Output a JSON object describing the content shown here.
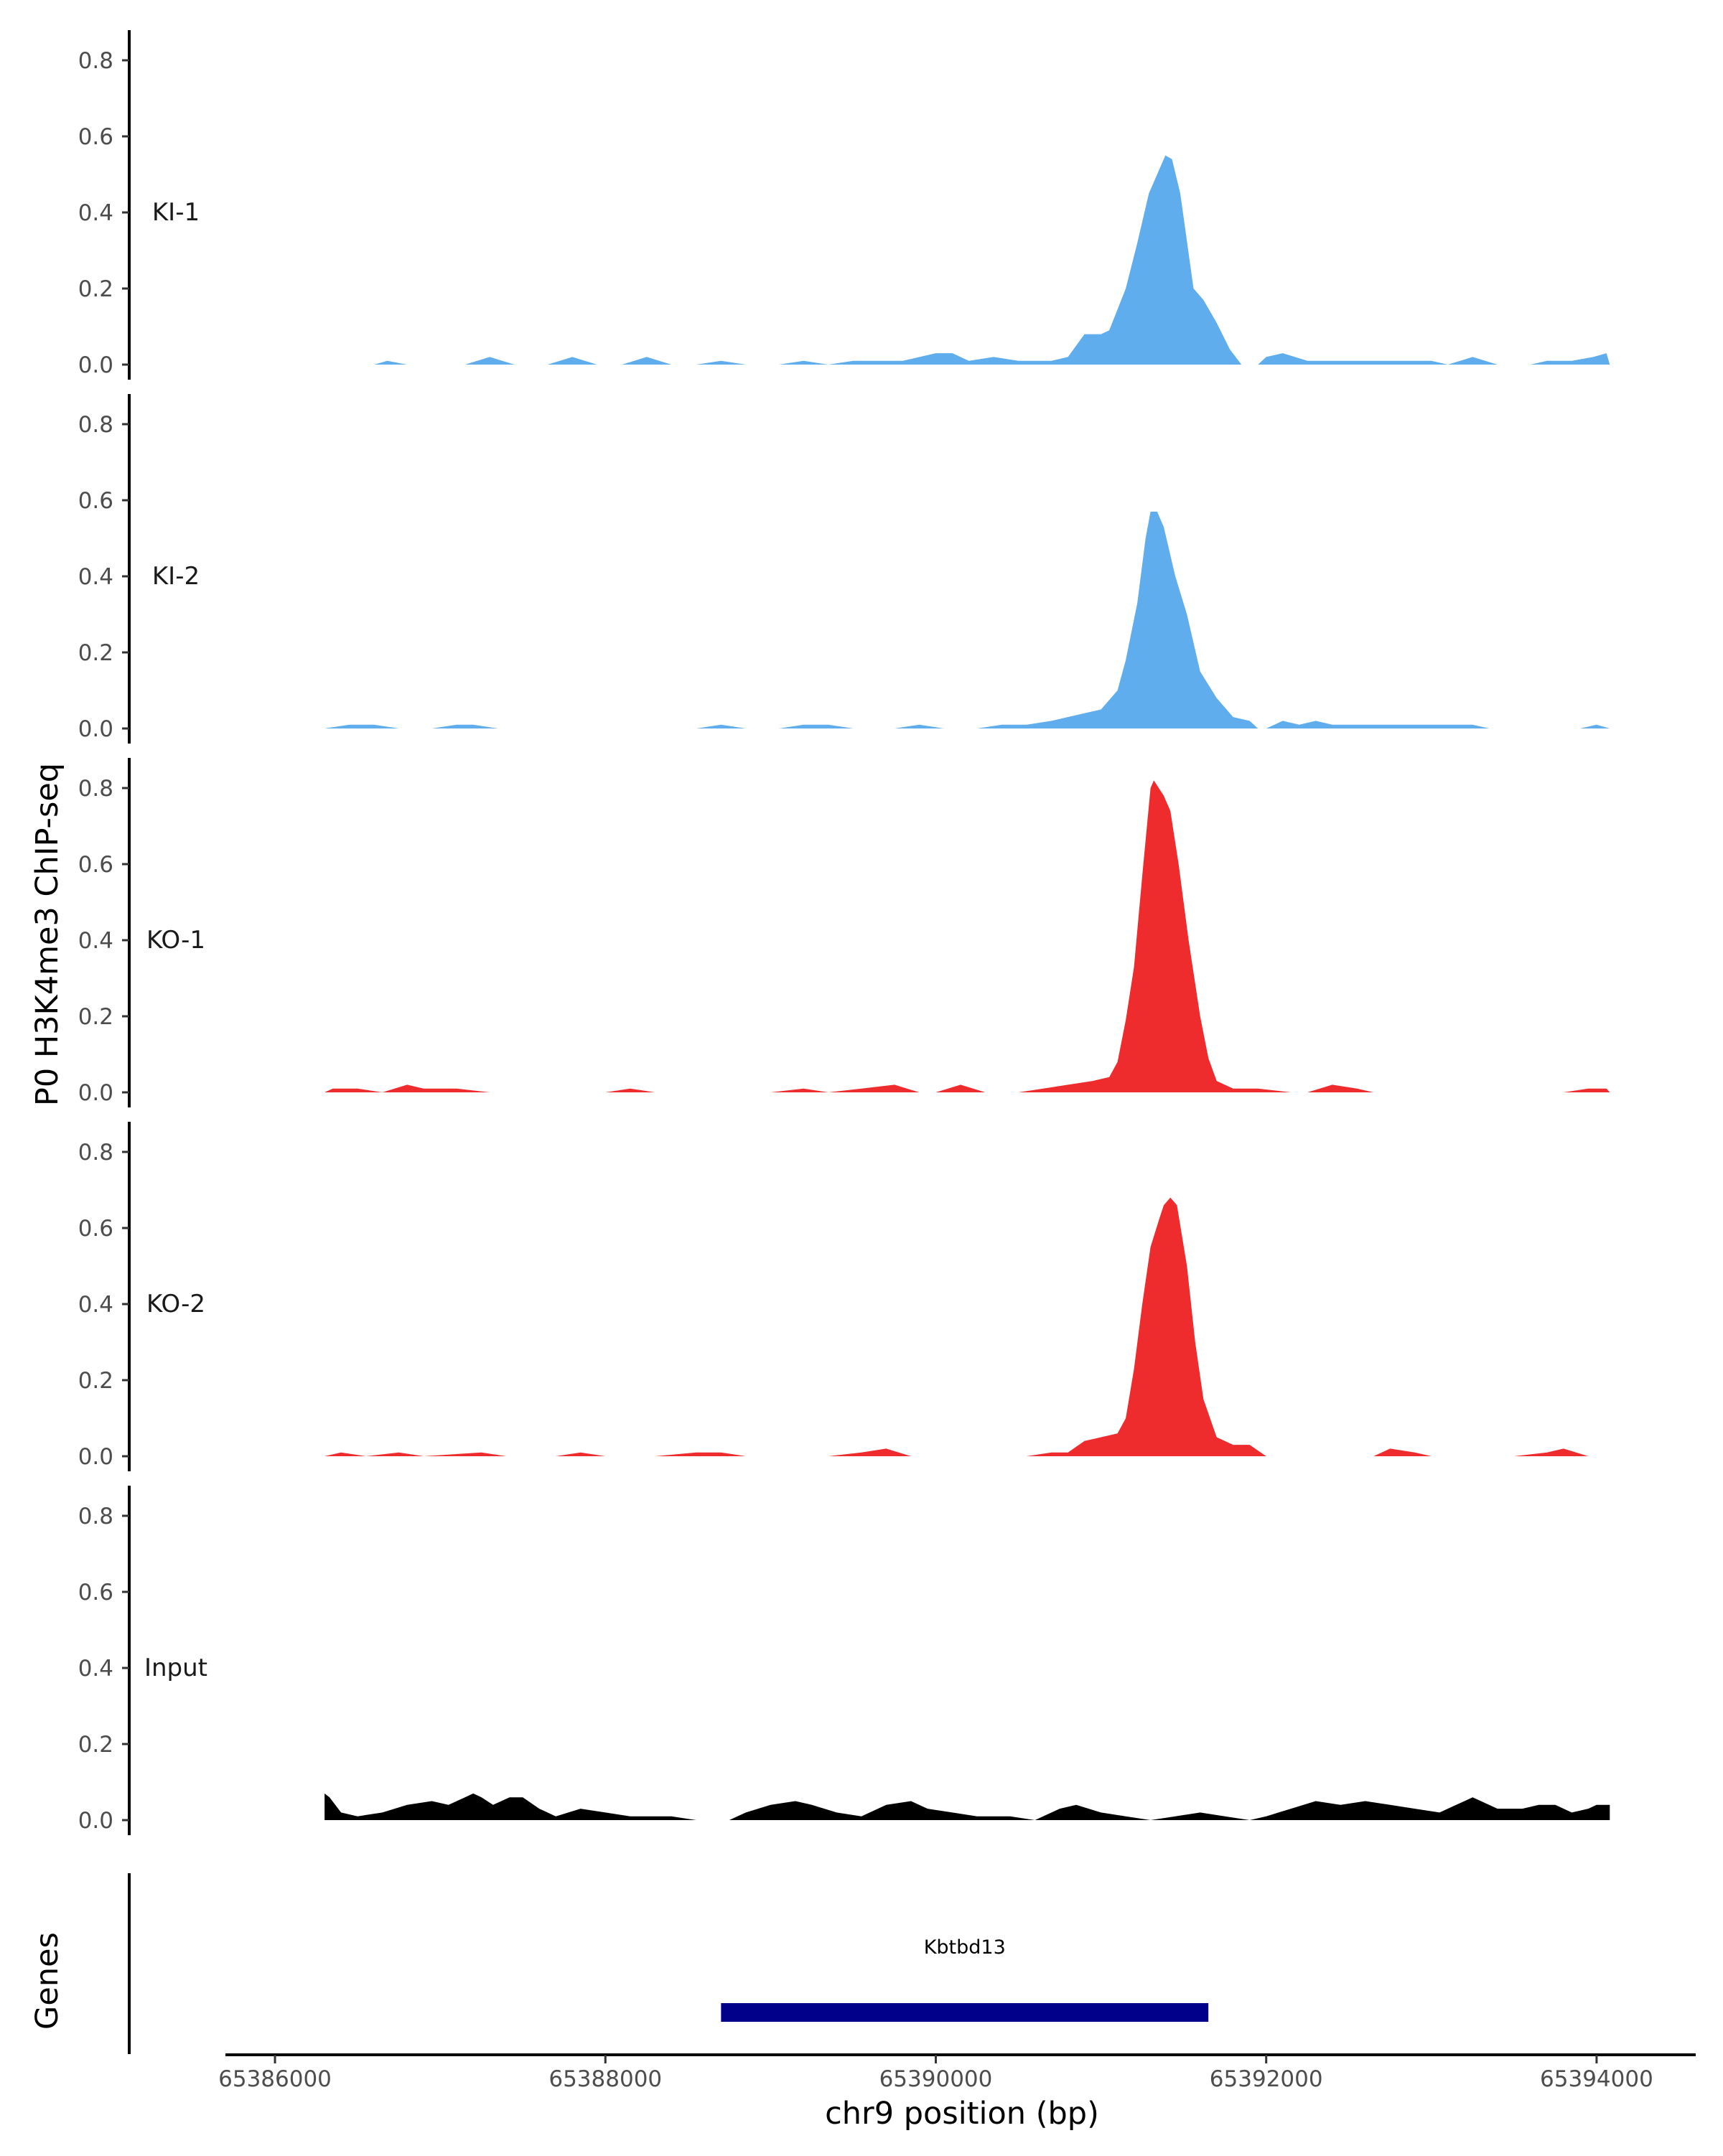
{
  "chart_data": {
    "type": "area",
    "ylabel": "P0 H3K4me3 ChIP-seq",
    "xlabel": "chr9 position (bp)",
    "ylim": [
      0,
      0.85
    ],
    "yticks": [
      0.0,
      0.2,
      0.4,
      0.6,
      0.8
    ],
    "ytick_labels": [
      "0.0",
      "0.2",
      "0.4",
      "0.6",
      "0.8"
    ],
    "xlim": [
      65385700,
      65394600
    ],
    "xticks": [
      65386000,
      65388000,
      65390000,
      65392000,
      65394000
    ],
    "xtick_labels": [
      "65386000",
      "65388000",
      "65390000",
      "65392000",
      "65394000"
    ],
    "grid": false,
    "tracks": [
      {
        "name": "KI-1",
        "color": "#5FADEC",
        "points": [
          [
            65386300,
            0
          ],
          [
            65386600,
            0
          ],
          [
            65386680,
            0.01
          ],
          [
            65386800,
            0
          ],
          [
            65387000,
            0
          ],
          [
            65387150,
            0
          ],
          [
            65387300,
            0.02
          ],
          [
            65387450,
            0
          ],
          [
            65387650,
            0
          ],
          [
            65387800,
            0.02
          ],
          [
            65387950,
            0
          ],
          [
            65388100,
            0
          ],
          [
            65388250,
            0.02
          ],
          [
            65388400,
            0
          ],
          [
            65388550,
            0
          ],
          [
            65388700,
            0.01
          ],
          [
            65388850,
            0
          ],
          [
            65389050,
            0
          ],
          [
            65389200,
            0.01
          ],
          [
            65389350,
            0
          ],
          [
            65389500,
            0.01
          ],
          [
            65389650,
            0.01
          ],
          [
            65389800,
            0.01
          ],
          [
            65390000,
            0.03
          ],
          [
            65390100,
            0.03
          ],
          [
            65390200,
            0.01
          ],
          [
            65390350,
            0.02
          ],
          [
            65390500,
            0.01
          ],
          [
            65390700,
            0.01
          ],
          [
            65390800,
            0.02
          ],
          [
            65390900,
            0.08
          ],
          [
            65391000,
            0.08
          ],
          [
            65391050,
            0.09
          ],
          [
            65391150,
            0.2
          ],
          [
            65391220,
            0.32
          ],
          [
            65391290,
            0.45
          ],
          [
            65391340,
            0.5
          ],
          [
            65391390,
            0.55
          ],
          [
            65391430,
            0.54
          ],
          [
            65391480,
            0.45
          ],
          [
            65391560,
            0.2
          ],
          [
            65391620,
            0.17
          ],
          [
            65391700,
            0.11
          ],
          [
            65391780,
            0.04
          ],
          [
            65391850,
            0
          ],
          [
            65391950,
            0
          ],
          [
            65392000,
            0.02
          ],
          [
            65392100,
            0.03
          ],
          [
            65392250,
            0.01
          ],
          [
            65392500,
            0.01
          ],
          [
            65392700,
            0.01
          ],
          [
            65392850,
            0.01
          ],
          [
            65393000,
            0.01
          ],
          [
            65393100,
            0
          ],
          [
            65393250,
            0.02
          ],
          [
            65393400,
            0
          ],
          [
            65393600,
            0
          ],
          [
            65393700,
            0.01
          ],
          [
            65393850,
            0.01
          ],
          [
            65393980,
            0.02
          ],
          [
            65394060,
            0.03
          ],
          [
            65394080,
            0
          ]
        ]
      },
      {
        "name": "KI-2",
        "color": "#5FADEC",
        "points": [
          [
            65386300,
            0
          ],
          [
            65386450,
            0.01
          ],
          [
            65386600,
            0.01
          ],
          [
            65386750,
            0
          ],
          [
            65386950,
            0
          ],
          [
            65387100,
            0.01
          ],
          [
            65387200,
            0.01
          ],
          [
            65387350,
            0
          ],
          [
            65387650,
            0
          ],
          [
            65388550,
            0
          ],
          [
            65388700,
            0.01
          ],
          [
            65388850,
            0
          ],
          [
            65389050,
            0
          ],
          [
            65389200,
            0.01
          ],
          [
            65389350,
            0.01
          ],
          [
            65389500,
            0
          ],
          [
            65389750,
            0
          ],
          [
            65389900,
            0.01
          ],
          [
            65390050,
            0
          ],
          [
            65390250,
            0
          ],
          [
            65390400,
            0.01
          ],
          [
            65390550,
            0.01
          ],
          [
            65390700,
            0.02
          ],
          [
            65390900,
            0.04
          ],
          [
            65391000,
            0.05
          ],
          [
            65391100,
            0.1
          ],
          [
            65391150,
            0.18
          ],
          [
            65391220,
            0.33
          ],
          [
            65391270,
            0.5
          ],
          [
            65391300,
            0.57
          ],
          [
            65391340,
            0.57
          ],
          [
            65391380,
            0.53
          ],
          [
            65391450,
            0.4
          ],
          [
            65391520,
            0.3
          ],
          [
            65391600,
            0.15
          ],
          [
            65391700,
            0.08
          ],
          [
            65391800,
            0.03
          ],
          [
            65391900,
            0.02
          ],
          [
            65391950,
            0
          ],
          [
            65392000,
            0
          ],
          [
            65392100,
            0.02
          ],
          [
            65392200,
            0.01
          ],
          [
            65392300,
            0.02
          ],
          [
            65392400,
            0.01
          ],
          [
            65392600,
            0.01
          ],
          [
            65392800,
            0.01
          ],
          [
            65393000,
            0.01
          ],
          [
            65393100,
            0.01
          ],
          [
            65393250,
            0.01
          ],
          [
            65393350,
            0
          ],
          [
            65393900,
            0
          ],
          [
            65394000,
            0.01
          ],
          [
            65394080,
            0
          ]
        ]
      },
      {
        "name": "KO-1",
        "color": "#EE2B2D",
        "points": [
          [
            65386300,
            0
          ],
          [
            65386350,
            0.01
          ],
          [
            65386500,
            0.01
          ],
          [
            65386650,
            0
          ],
          [
            65386800,
            0.02
          ],
          [
            65386900,
            0.01
          ],
          [
            65387000,
            0.01
          ],
          [
            65387100,
            0.01
          ],
          [
            65387300,
            0
          ],
          [
            65388000,
            0
          ],
          [
            65388150,
            0.01
          ],
          [
            65388300,
            0
          ],
          [
            65389000,
            0
          ],
          [
            65389200,
            0.01
          ],
          [
            65389350,
            0
          ],
          [
            65389550,
            0.01
          ],
          [
            65389750,
            0.02
          ],
          [
            65389900,
            0
          ],
          [
            65390000,
            0
          ],
          [
            65390150,
            0.02
          ],
          [
            65390300,
            0
          ],
          [
            65390500,
            0
          ],
          [
            65390650,
            0.01
          ],
          [
            65390800,
            0.02
          ],
          [
            65390950,
            0.03
          ],
          [
            65391050,
            0.04
          ],
          [
            65391100,
            0.08
          ],
          [
            65391150,
            0.19
          ],
          [
            65391200,
            0.33
          ],
          [
            65391250,
            0.57
          ],
          [
            65391300,
            0.8
          ],
          [
            65391320,
            0.82
          ],
          [
            65391380,
            0.78
          ],
          [
            65391420,
            0.74
          ],
          [
            65391470,
            0.6
          ],
          [
            65391530,
            0.4
          ],
          [
            65391600,
            0.2
          ],
          [
            65391650,
            0.09
          ],
          [
            65391700,
            0.03
          ],
          [
            65391800,
            0.01
          ],
          [
            65391950,
            0.01
          ],
          [
            65392150,
            0
          ],
          [
            65392250,
            0
          ],
          [
            65392400,
            0.02
          ],
          [
            65392550,
            0.01
          ],
          [
            65392650,
            0
          ],
          [
            65393800,
            0
          ],
          [
            65393950,
            0.01
          ],
          [
            65394060,
            0.01
          ],
          [
            65394080,
            0
          ]
        ]
      },
      {
        "name": "KO-2",
        "color": "#EE2B2D",
        "points": [
          [
            65386300,
            0
          ],
          [
            65386400,
            0.01
          ],
          [
            65386550,
            0
          ],
          [
            65386750,
            0.01
          ],
          [
            65386900,
            0
          ],
          [
            65387250,
            0.01
          ],
          [
            65387400,
            0
          ],
          [
            65387500,
            0
          ],
          [
            65387700,
            0
          ],
          [
            65387850,
            0.01
          ],
          [
            65388000,
            0
          ],
          [
            65388300,
            0
          ],
          [
            65388550,
            0.01
          ],
          [
            65388700,
            0.01
          ],
          [
            65388850,
            0
          ],
          [
            65389000,
            0
          ],
          [
            65389150,
            0
          ],
          [
            65389350,
            0
          ],
          [
            65389550,
            0.01
          ],
          [
            65389700,
            0.02
          ],
          [
            65389850,
            0
          ],
          [
            65390050,
            0
          ],
          [
            65390300,
            0
          ],
          [
            65390550,
            0
          ],
          [
            65390700,
            0.01
          ],
          [
            65390800,
            0.01
          ],
          [
            65390900,
            0.04
          ],
          [
            65391000,
            0.05
          ],
          [
            65391100,
            0.06
          ],
          [
            65391150,
            0.1
          ],
          [
            65391200,
            0.23
          ],
          [
            65391250,
            0.4
          ],
          [
            65391300,
            0.55
          ],
          [
            65391350,
            0.62
          ],
          [
            65391380,
            0.66
          ],
          [
            65391420,
            0.68
          ],
          [
            65391460,
            0.66
          ],
          [
            65391520,
            0.5
          ],
          [
            65391570,
            0.3
          ],
          [
            65391620,
            0.15
          ],
          [
            65391700,
            0.05
          ],
          [
            65391800,
            0.03
          ],
          [
            65391900,
            0.03
          ],
          [
            65392000,
            0
          ],
          [
            65392250,
            0
          ],
          [
            65392500,
            0
          ],
          [
            65392650,
            0
          ],
          [
            65392750,
            0.02
          ],
          [
            65392900,
            0.01
          ],
          [
            65393000,
            0
          ],
          [
            65393300,
            0
          ],
          [
            65393500,
            0
          ],
          [
            65393700,
            0.01
          ],
          [
            65393800,
            0.02
          ],
          [
            65393950,
            0
          ],
          [
            65394050,
            0
          ]
        ]
      },
      {
        "name": "Input",
        "color": "#000000",
        "points": [
          [
            65386300,
            0
          ],
          [
            65386300,
            0.07
          ],
          [
            65386330,
            0.06
          ],
          [
            65386400,
            0.02
          ],
          [
            65386500,
            0.01
          ],
          [
            65386650,
            0.02
          ],
          [
            65386800,
            0.04
          ],
          [
            65386950,
            0.05
          ],
          [
            65387050,
            0.04
          ],
          [
            65387150,
            0.06
          ],
          [
            65387200,
            0.07
          ],
          [
            65387250,
            0.06
          ],
          [
            65387320,
            0.04
          ],
          [
            65387420,
            0.06
          ],
          [
            65387500,
            0.06
          ],
          [
            65387600,
            0.03
          ],
          [
            65387700,
            0.01
          ],
          [
            65387850,
            0.03
          ],
          [
            65388000,
            0.02
          ],
          [
            65388150,
            0.01
          ],
          [
            65388400,
            0.01
          ],
          [
            65388550,
            0
          ],
          [
            65388750,
            0
          ],
          [
            65388850,
            0.02
          ],
          [
            65389000,
            0.04
          ],
          [
            65389150,
            0.05
          ],
          [
            65389250,
            0.04
          ],
          [
            65389400,
            0.02
          ],
          [
            65389550,
            0.01
          ],
          [
            65389700,
            0.04
          ],
          [
            65389850,
            0.05
          ],
          [
            65389950,
            0.03
          ],
          [
            65390100,
            0.02
          ],
          [
            65390250,
            0.01
          ],
          [
            65390450,
            0.01
          ],
          [
            65390600,
            0
          ],
          [
            65390750,
            0.03
          ],
          [
            65390850,
            0.04
          ],
          [
            65391000,
            0.02
          ],
          [
            65391150,
            0.01
          ],
          [
            65391300,
            0
          ],
          [
            65391450,
            0.01
          ],
          [
            65391600,
            0.02
          ],
          [
            65391750,
            0.01
          ],
          [
            65391900,
            0
          ],
          [
            65392000,
            0.01
          ],
          [
            65392150,
            0.03
          ],
          [
            65392300,
            0.05
          ],
          [
            65392450,
            0.04
          ],
          [
            65392600,
            0.05
          ],
          [
            65392750,
            0.04
          ],
          [
            65392900,
            0.03
          ],
          [
            65393050,
            0.02
          ],
          [
            65393150,
            0.04
          ],
          [
            65393250,
            0.06
          ],
          [
            65393400,
            0.03
          ],
          [
            65393550,
            0.03
          ],
          [
            65393650,
            0.04
          ],
          [
            65393750,
            0.04
          ],
          [
            65393850,
            0.02
          ],
          [
            65393950,
            0.03
          ],
          [
            65394000,
            0.04
          ],
          [
            65394080,
            0.04
          ],
          [
            65394080,
            0
          ]
        ]
      }
    ],
    "genes_track": {
      "label": "Genes",
      "genes": [
        {
          "name": "Kbtbd13",
          "start": 65388700,
          "end": 65391650,
          "color": "#00008B"
        }
      ]
    }
  }
}
